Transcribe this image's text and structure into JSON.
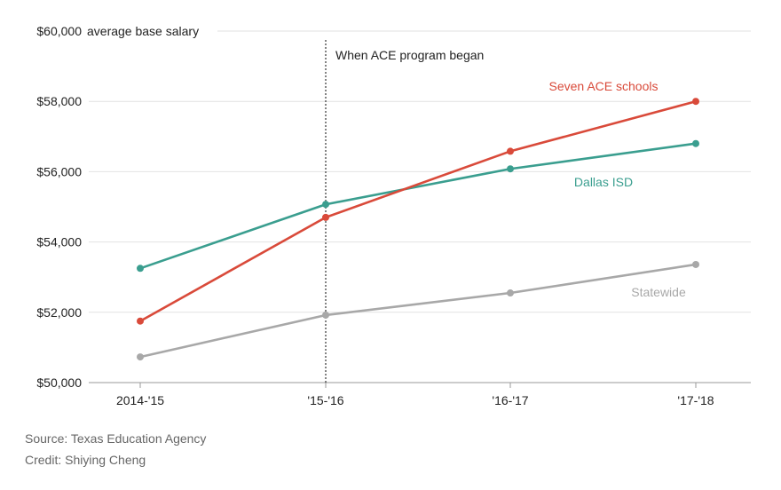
{
  "chart_data": {
    "type": "line",
    "categories": [
      "2014-'15",
      "'15-'16",
      "'16-'17",
      "'17-'18"
    ],
    "ylabel": "average base salary",
    "ylim": [
      50000,
      60000
    ],
    "yticks": [
      50000,
      52000,
      54000,
      56000,
      58000,
      60000
    ],
    "ytick_labels": [
      "$50,000",
      "$52,000",
      "$54,000",
      "$56,000",
      "$58,000",
      "$60,000"
    ],
    "grid": true,
    "annotation": {
      "category_index": 1,
      "text": "When ACE program began"
    },
    "series": [
      {
        "name": "Seven ACE schools",
        "color": "#d94a3a",
        "values": [
          51750,
          54700,
          56580,
          58000
        ]
      },
      {
        "name": "Dallas ISD",
        "color": "#3a9e8f",
        "values": [
          53250,
          55070,
          56080,
          56800
        ]
      },
      {
        "name": "Statewide",
        "color": "#a8a8a8",
        "values": [
          50730,
          51920,
          52550,
          53360
        ]
      }
    ]
  },
  "footer": {
    "source": "Source: Texas Education Agency",
    "credit": "Credit: Shiying Cheng"
  }
}
